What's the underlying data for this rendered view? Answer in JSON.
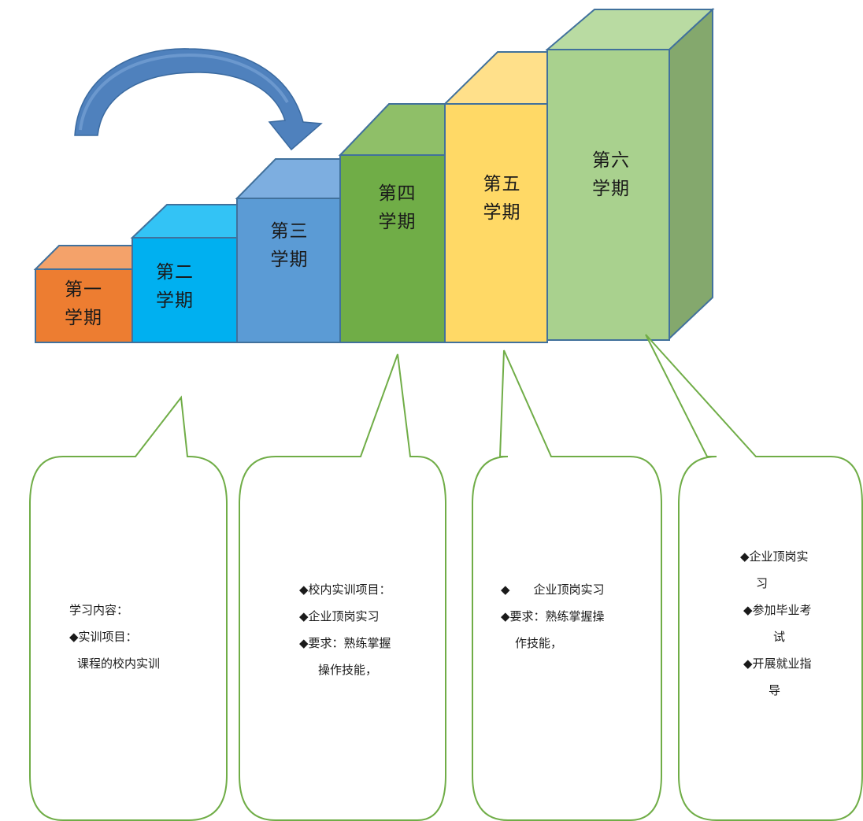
{
  "colors": {
    "term1": "#ed7d31",
    "term2": "#00b0f0",
    "term3": "#5b9bd5",
    "term4": "#70ad47",
    "term5": "#ffd966",
    "term6": "#a9d18e",
    "outline": "#41719c",
    "bubble_outline": "#70ad47",
    "arrow": "#4f81bd"
  },
  "terms": [
    {
      "line1": "第一",
      "line2": "学期"
    },
    {
      "line1": "第二",
      "line2": "学期"
    },
    {
      "line1": "第三",
      "line2": "学期"
    },
    {
      "line1": "第四",
      "line2": "学期"
    },
    {
      "line1": "第五",
      "line2": "学期"
    },
    {
      "line1": "第六",
      "line2": "学期"
    }
  ],
  "bubbles": [
    {
      "lines": [
        "学习内容：",
        "◆实训项目：",
        "课程的校内实训"
      ]
    },
    {
      "lines": [
        "◆校内实训项目：",
        "◆企业顶岗实习",
        "◆要求：熟练掌握",
        "操作技能，"
      ]
    },
    {
      "lines": [
        "◆　　企业顶岗实习",
        "◆要求：熟练掌握操",
        "作技能，"
      ]
    },
    {
      "lines": [
        "◆企业顶岗实",
        "习",
        "◆参加毕业考",
        "试",
        "◆开展就业指",
        "导"
      ]
    }
  ]
}
